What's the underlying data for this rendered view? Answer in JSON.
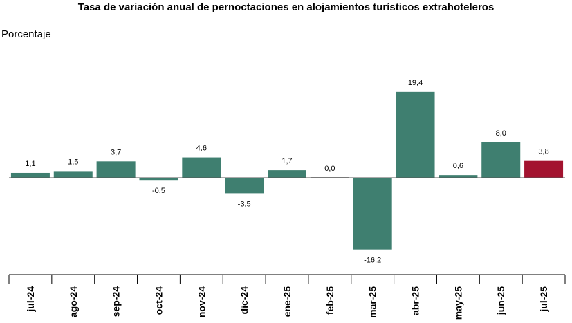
{
  "colors": {
    "bar": "#3f7f70",
    "highlight": "#a3132f",
    "axis": "#000000",
    "baseline": "#555555",
    "zero_bar": "#9a9a9a"
  },
  "chart_data": {
    "type": "bar",
    "title": "Tasa de variación anual de pernoctaciones en alojamientos turísticos extrahoteleros",
    "ylabel": "Porcentaje",
    "xlabel": "",
    "grid": false,
    "legend": "none",
    "ylim": [
      -18,
      21
    ],
    "categories": [
      "jul-24",
      "ago-24",
      "sep-24",
      "oct-24",
      "nov-24",
      "dic-24",
      "ene-25",
      "feb-25",
      "mar-25",
      "abr-25",
      "may-25",
      "jun-25",
      "jul-25"
    ],
    "values": [
      1.1,
      1.5,
      3.7,
      -0.5,
      4.6,
      -3.5,
      1.7,
      0.0,
      -16.2,
      19.4,
      0.6,
      8.0,
      3.8
    ],
    "value_labels": [
      "1,1",
      "1,5",
      "3,7",
      "-0,5",
      "4,6",
      "-3,5",
      "1,7",
      "0,0",
      "-16,2",
      "19,4",
      "0,6",
      "8,0",
      "3,8"
    ],
    "highlight_category": "jul-25"
  }
}
